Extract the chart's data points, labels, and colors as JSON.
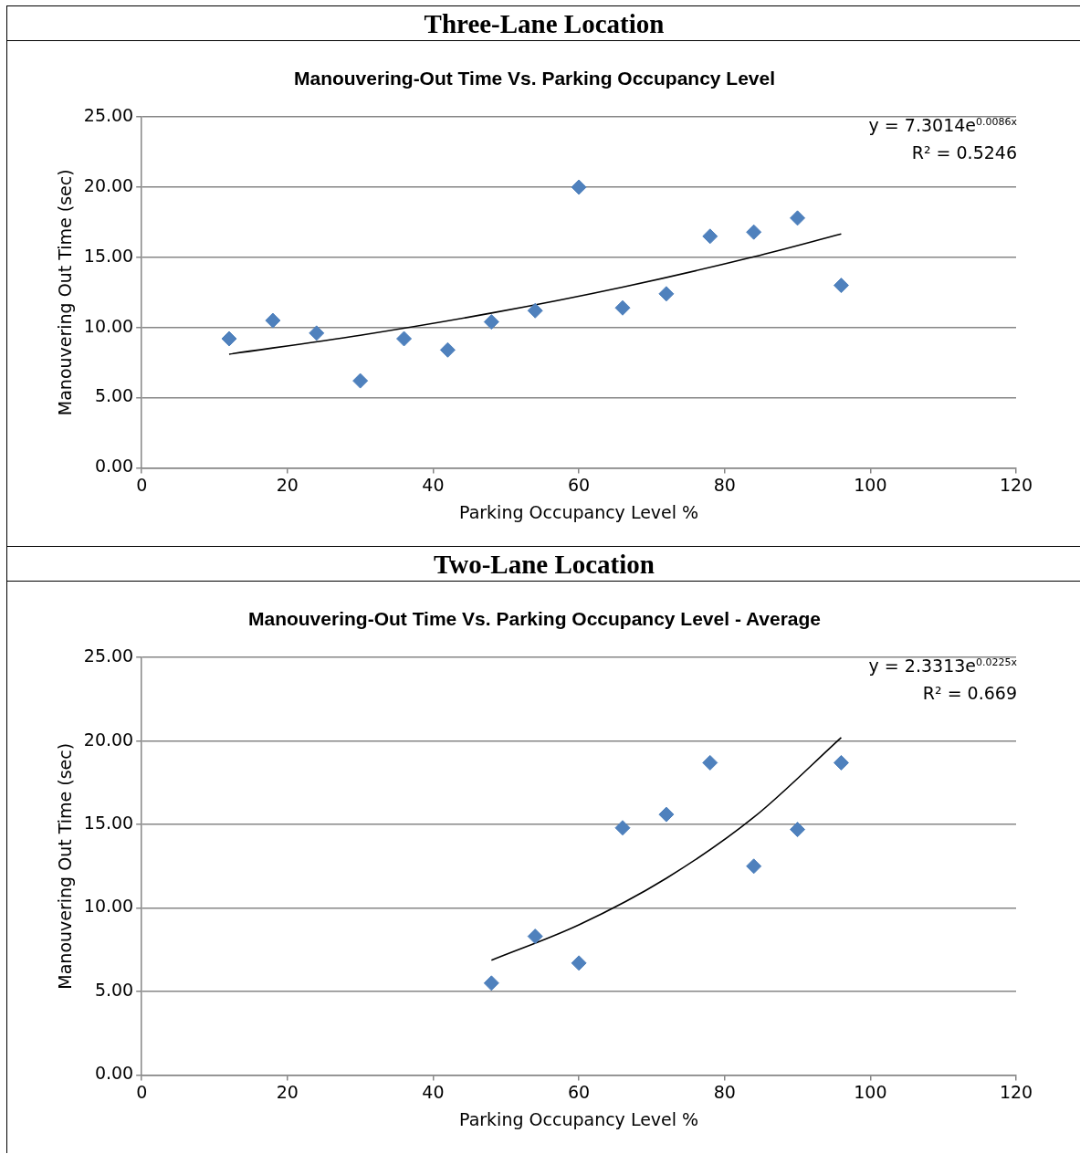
{
  "chart_data": [
    {
      "type": "scatter",
      "title": "Three-Lane Location",
      "subtitle": "Manouvering-Out Time Vs. Parking Occupancy Level",
      "xlabel": "Parking Occupancy Level %",
      "ylabel": "Manouvering Out Time (sec)",
      "annotations": [
        "y = 7.3014e$^{0.0086x}$",
        "R² = 0.5246"
      ],
      "x": [
        12,
        18,
        24,
        30,
        36,
        42,
        48,
        54,
        60,
        66,
        72,
        78,
        84,
        90,
        96
      ],
      "series": [
        {
          "color": "#4f81bd",
          "marker": "diamond",
          "values": [
            9.2,
            10.5,
            9.6,
            6.2,
            9.2,
            8.4,
            10.4,
            11.2,
            20.0,
            11.4,
            12.4,
            16.5,
            16.8,
            17.8,
            13.0
          ]
        },
        {
          "type": "line",
          "color": "#000000",
          "marker": "none",
          "x": [
            12,
            30,
            48,
            66,
            84,
            96
          ],
          "values": [
            8.1,
            9.45,
            11.03,
            12.88,
            15.04,
            16.67
          ]
        }
      ],
      "xlim": [
        0,
        120
      ],
      "xticks": [
        0,
        20,
        40,
        60,
        80,
        100,
        120
      ],
      "ylim": [
        0,
        25
      ],
      "yticks": [
        {
          "value": 0,
          "label": "0.00"
        },
        {
          "value": 5,
          "label": "5.00"
        },
        {
          "value": 10,
          "label": "10.00"
        },
        {
          "value": 15,
          "label": "15.00"
        },
        {
          "value": 20,
          "label": "20.00"
        },
        {
          "value": 25,
          "label": "25.00"
        }
      ],
      "grid": "y",
      "legend": false
    },
    {
      "type": "scatter",
      "title": "Two-Lane Location",
      "subtitle": "Manouvering-Out Time Vs. Parking Occupancy Level - Average",
      "xlabel": "Parking Occupancy Level %",
      "ylabel": "Manouvering Out Time (sec)",
      "annotations": [
        "y = 2.3313e$^{0.0225x}$",
        "R² = 0.669"
      ],
      "x": [
        48,
        54,
        60,
        66,
        72,
        78,
        84,
        90,
        96
      ],
      "series": [
        {
          "color": "#4f81bd",
          "marker": "diamond",
          "values": [
            5.5,
            8.3,
            6.7,
            14.8,
            15.6,
            18.7,
            12.5,
            14.7,
            18.7
          ]
        },
        {
          "type": "line",
          "color": "#000000",
          "marker": "none",
          "x": [
            48,
            60,
            72,
            84,
            96
          ],
          "values": [
            6.87,
            8.99,
            11.78,
            15.43,
            20.21
          ]
        }
      ],
      "xlim": [
        0,
        120
      ],
      "xticks": [
        0,
        20,
        40,
        60,
        80,
        100,
        120
      ],
      "ylim": [
        0,
        25
      ],
      "yticks": [
        {
          "value": 0,
          "label": "0.00"
        },
        {
          "value": 5,
          "label": "5.00"
        },
        {
          "value": 10,
          "label": "10.00"
        },
        {
          "value": 15,
          "label": "15.00"
        },
        {
          "value": 20,
          "label": "20.00"
        },
        {
          "value": 25,
          "label": "25.00"
        }
      ],
      "grid": "y",
      "legend": false
    }
  ]
}
